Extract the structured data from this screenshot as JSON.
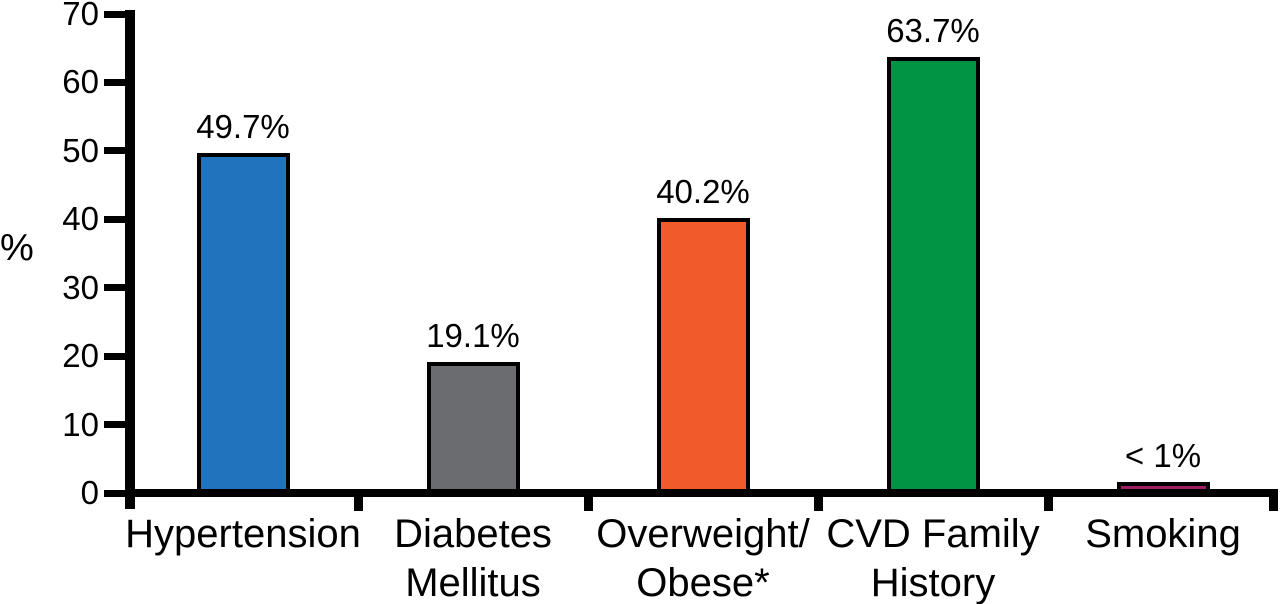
{
  "chart_data": {
    "type": "bar",
    "title": "",
    "xlabel": "",
    "ylabel": "%",
    "ylim": [
      0,
      70
    ],
    "yticks": [
      0,
      10,
      20,
      30,
      40,
      50,
      60,
      70
    ],
    "ytick_labels": [
      "0",
      "10",
      "20",
      "30",
      "40",
      "50",
      "60",
      "70"
    ],
    "grid": false,
    "legend": "none",
    "background_color": "#FFFFFF",
    "axis_color": "#000000",
    "bar_border_color": "#000000",
    "categories": [
      "Hypertension",
      "Diabetes Mellitus",
      "Overweight/Obese*",
      "CVD Family History",
      "Smoking"
    ],
    "category_label_lines": [
      [
        "Hypertension"
      ],
      [
        "Diabetes",
        "Mellitus"
      ],
      [
        "Overweight/",
        "Obese*"
      ],
      [
        "CVD Family",
        "History"
      ],
      [
        "Smoking"
      ]
    ],
    "values": [
      49.7,
      19.1,
      40.2,
      63.7,
      0.9
    ],
    "value_labels": [
      "49.7%",
      "19.1%",
      "40.2%",
      "63.7%",
      "< 1%"
    ],
    "bar_colors": [
      "#2173BD",
      "#6A6C70",
      "#F15A29",
      "#009444",
      "#9E1F63"
    ]
  }
}
